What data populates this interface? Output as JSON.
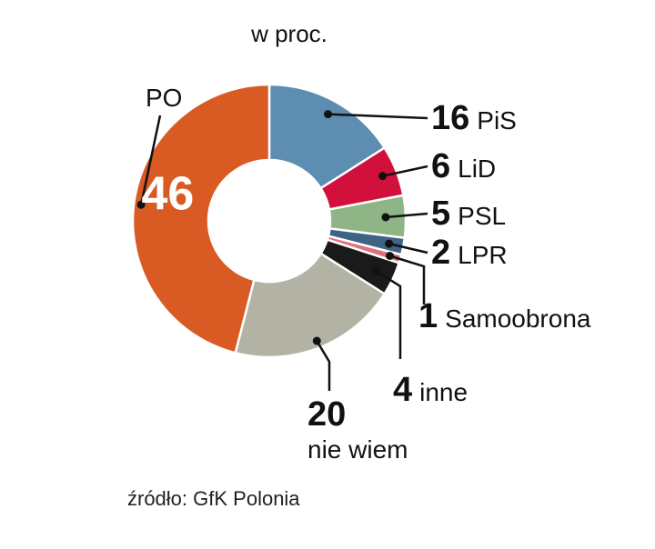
{
  "chart_data": {
    "type": "pie",
    "subtitle": "w proc.",
    "source": "źródło: GfK Polonia",
    "slices": [
      {
        "label": "PiS",
        "value": 16,
        "color": "#5d8db0"
      },
      {
        "label": "LiD",
        "value": 6,
        "color": "#d2103c"
      },
      {
        "label": "PSL",
        "value": 5,
        "color": "#8fb586"
      },
      {
        "label": "LPR",
        "value": 2,
        "color": "#3f6382"
      },
      {
        "label": "Samoobrona",
        "value": 1,
        "color": "#e0707a"
      },
      {
        "label": "inne",
        "value": 4,
        "color": "#1a1a1a"
      },
      {
        "label": "nie wiem",
        "value": 20,
        "color": "#b3b3a5"
      },
      {
        "label": "PO",
        "value": 46,
        "color": "#d95a22"
      }
    ]
  }
}
